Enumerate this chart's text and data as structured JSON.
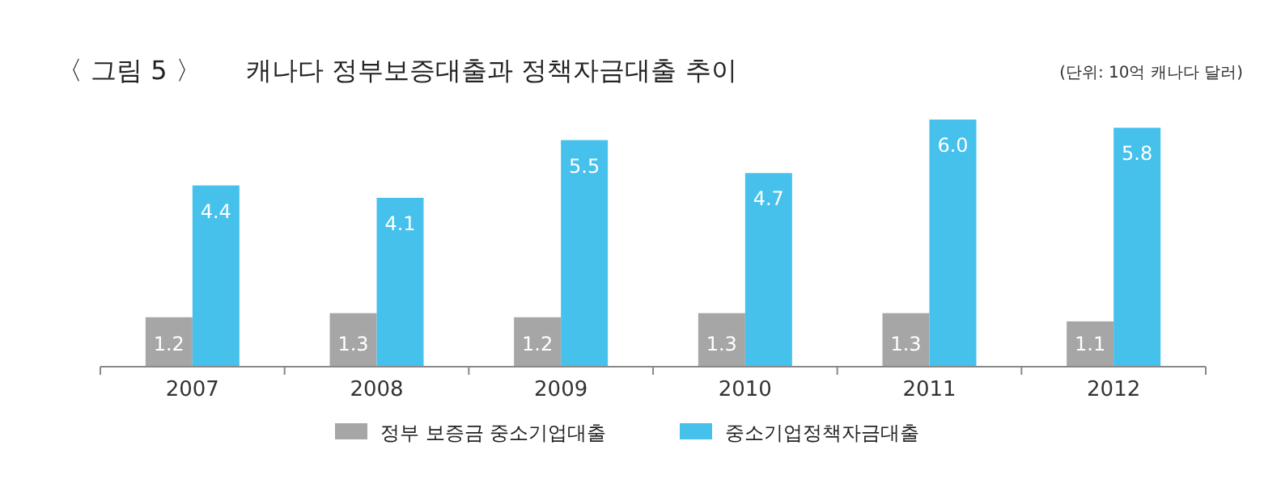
{
  "chart_data": {
    "type": "bar",
    "title": "캐나다 정부보증대출과 정책자금대출 추이",
    "annotations": [
      "〈 그림 5 〉",
      "(단위: 10억 캐나다 달러)"
    ],
    "categories": [
      "2007",
      "2008",
      "2009",
      "2010",
      "2011",
      "2012"
    ],
    "series": [
      {
        "name": "정부 보증금 중소기업대출",
        "color": "#a6a6a6",
        "values": [
          1.2,
          1.3,
          1.2,
          1.3,
          1.3,
          1.1
        ],
        "value_labels": [
          "1.2",
          "1.3",
          "1.2",
          "1.3",
          "1.3",
          "1.1"
        ]
      },
      {
        "name": "중소기업정책자금대출",
        "color": "#45c1ec",
        "values": [
          4.4,
          4.1,
          5.5,
          4.7,
          6.0,
          5.8
        ],
        "value_labels": [
          "4.4",
          "4.1",
          "5.5",
          "4.7",
          "6.0",
          "5.8"
        ]
      }
    ],
    "legend": "bottom"
  }
}
